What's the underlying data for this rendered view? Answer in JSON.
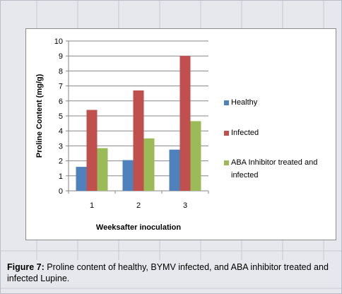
{
  "caption": {
    "label": "Figure 7:",
    "text": " Proline content of healthy, BYMV infected, and ABA inhibitor treated and infected Lupine."
  },
  "colors": {
    "page_bg": "#e6e8ed",
    "healthy": "#4f81bd",
    "infected": "#c0504d",
    "aba": "#9bbb59"
  },
  "chart_data": {
    "type": "bar",
    "categories": [
      "1",
      "2",
      "3"
    ],
    "series": [
      {
        "name": "Healthy",
        "values": [
          1.6,
          2.05,
          2.75
        ],
        "color": "#4f81bd"
      },
      {
        "name": "Infected",
        "values": [
          5.4,
          6.7,
          9.0
        ],
        "color": "#c0504d"
      },
      {
        "name": "ABA Inhibitor treated and infected",
        "values": [
          2.85,
          3.5,
          4.65
        ],
        "color": "#9bbb59"
      }
    ],
    "title": "",
    "xlabel": "Weeksafter inoculation",
    "ylabel": "Proline Content (mg/g)",
    "ylim": [
      0,
      10
    ],
    "yticks": [
      "0",
      "1",
      "2",
      "3",
      "4",
      "5",
      "6",
      "7",
      "8",
      "9",
      "10"
    ],
    "grid": true,
    "legend": "right"
  }
}
